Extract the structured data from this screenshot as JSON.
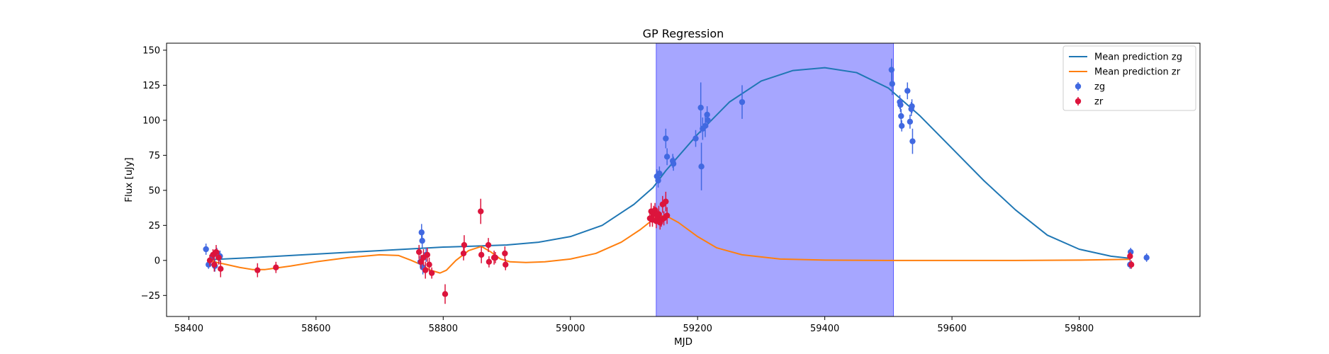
{
  "chart_data": {
    "type": "scatter",
    "title": "GP Regression",
    "xlabel": "MJD",
    "ylabel": "Flux [uJy]",
    "xlim": [
      58365,
      59990
    ],
    "ylim": [
      -40,
      155
    ],
    "xticks": [
      58400,
      58600,
      58800,
      59000,
      59200,
      59400,
      59600,
      59800
    ],
    "yticks": [
      -25,
      0,
      25,
      50,
      75,
      100,
      125,
      150
    ],
    "grid": false,
    "legend_position": "top-right",
    "shaded_span": {
      "x0": 59135,
      "x1": 59508,
      "color": "#a6a6ff"
    },
    "colors": {
      "zg_line": "#1f77b4",
      "zr_line": "#ff7f0e",
      "zg_points": "#4169e1",
      "zr_points": "#dc143c"
    },
    "legend": [
      {
        "label": "Mean prediction zg",
        "kind": "line",
        "color": "#1f77b4"
      },
      {
        "label": "Mean prediction zr",
        "kind": "line",
        "color": "#ff7f0e"
      },
      {
        "label": "zg",
        "kind": "errorbar",
        "color": "#4169e1"
      },
      {
        "label": "zr",
        "kind": "errorbar",
        "color": "#dc143c"
      }
    ],
    "lines": [
      {
        "name": "Mean prediction zg",
        "color": "#1f77b4",
        "points": [
          [
            58430,
            0.5
          ],
          [
            58500,
            2
          ],
          [
            58600,
            4.5
          ],
          [
            58700,
            7
          ],
          [
            58760,
            8.5
          ],
          [
            58800,
            9.5
          ],
          [
            58850,
            10.2
          ],
          [
            58900,
            11
          ],
          [
            58950,
            13
          ],
          [
            59000,
            17
          ],
          [
            59050,
            25
          ],
          [
            59100,
            40
          ],
          [
            59130,
            52
          ],
          [
            59150,
            64
          ],
          [
            59200,
            90
          ],
          [
            59250,
            113
          ],
          [
            59300,
            128
          ],
          [
            59350,
            135.5
          ],
          [
            59400,
            137.5
          ],
          [
            59450,
            134
          ],
          [
            59500,
            123
          ],
          [
            59550,
            103
          ],
          [
            59600,
            80
          ],
          [
            59650,
            57
          ],
          [
            59700,
            36
          ],
          [
            59750,
            18
          ],
          [
            59800,
            8
          ],
          [
            59850,
            3
          ],
          [
            59880,
            1.5
          ]
        ]
      },
      {
        "name": "Mean prediction zr",
        "color": "#ff7f0e",
        "points": [
          [
            58430,
            0.5
          ],
          [
            58445,
            -1.5
          ],
          [
            58460,
            -3
          ],
          [
            58480,
            -5
          ],
          [
            58500,
            -6.5
          ],
          [
            58520,
            -6.5
          ],
          [
            58560,
            -4
          ],
          [
            58600,
            -1
          ],
          [
            58650,
            2
          ],
          [
            58700,
            4
          ],
          [
            58730,
            3.5
          ],
          [
            58750,
            0
          ],
          [
            58765,
            -3
          ],
          [
            58780,
            -7
          ],
          [
            58795,
            -9
          ],
          [
            58805,
            -7
          ],
          [
            58820,
            0
          ],
          [
            58840,
            7
          ],
          [
            58860,
            10
          ],
          [
            58875,
            6
          ],
          [
            58890,
            1
          ],
          [
            58905,
            -1
          ],
          [
            58930,
            -1.5
          ],
          [
            58960,
            -1
          ],
          [
            59000,
            1
          ],
          [
            59040,
            5
          ],
          [
            59080,
            13
          ],
          [
            59110,
            22
          ],
          [
            59135,
            31
          ],
          [
            59150,
            32
          ],
          [
            59170,
            27
          ],
          [
            59200,
            17
          ],
          [
            59230,
            9
          ],
          [
            59270,
            4
          ],
          [
            59330,
            1
          ],
          [
            59400,
            0.2
          ],
          [
            59500,
            0
          ],
          [
            59600,
            0
          ],
          [
            59700,
            0
          ],
          [
            59800,
            0.2
          ],
          [
            59880,
            0.8
          ]
        ]
      }
    ],
    "series": [
      {
        "name": "zg",
        "color": "#4169e1",
        "points": [
          [
            58427,
            8,
            4
          ],
          [
            58431,
            -3,
            3
          ],
          [
            58437,
            3,
            3
          ],
          [
            58441,
            -4,
            4
          ],
          [
            58444,
            5,
            4
          ],
          [
            58449,
            3,
            4
          ],
          [
            58764,
            -1,
            4
          ],
          [
            58766,
            20,
            6
          ],
          [
            58767,
            14,
            5
          ],
          [
            58768,
            -5,
            5
          ],
          [
            58773,
            4,
            5
          ],
          [
            59136,
            60,
            5
          ],
          [
            59138,
            57,
            5
          ],
          [
            59140,
            62,
            5
          ],
          [
            59150,
            87,
            7
          ],
          [
            59152,
            74,
            6
          ],
          [
            59161,
            71,
            5
          ],
          [
            59162,
            69,
            5
          ],
          [
            59197,
            87,
            6
          ],
          [
            59205,
            109,
            18
          ],
          [
            59206,
            67,
            17
          ],
          [
            59208,
            94,
            8
          ],
          [
            59212,
            96,
            8
          ],
          [
            59215,
            104,
            6
          ],
          [
            59216,
            100,
            5
          ],
          [
            59270,
            113,
            12
          ],
          [
            59505,
            136,
            8
          ],
          [
            59506,
            126,
            8
          ],
          [
            59518,
            113,
            5
          ],
          [
            59519,
            111,
            5
          ],
          [
            59520,
            103,
            5
          ],
          [
            59521,
            96,
            4
          ],
          [
            59530,
            121,
            6
          ],
          [
            59534,
            99,
            5
          ],
          [
            59536,
            108,
            5
          ],
          [
            59537,
            110,
            5
          ],
          [
            59538,
            85,
            9
          ],
          [
            59880,
            -3,
            3
          ],
          [
            59881,
            6,
            3
          ],
          [
            59906,
            2,
            3
          ]
        ]
      },
      {
        "name": "zr",
        "color": "#dc143c",
        "points": [
          [
            58433,
            0,
            4
          ],
          [
            58438,
            4,
            4
          ],
          [
            58440,
            -3,
            5
          ],
          [
            58443,
            6,
            5
          ],
          [
            58447,
            2,
            5
          ],
          [
            58450,
            -6,
            6
          ],
          [
            58508,
            -7,
            5
          ],
          [
            58537,
            -5,
            4
          ],
          [
            58762,
            6,
            5
          ],
          [
            58765,
            -1,
            5
          ],
          [
            58769,
            2,
            6
          ],
          [
            58772,
            -7,
            6
          ],
          [
            58775,
            4,
            5
          ],
          [
            58778,
            -3,
            5
          ],
          [
            58782,
            -9,
            4
          ],
          [
            58803,
            -24,
            7
          ],
          [
            58832,
            5,
            5
          ],
          [
            58833,
            11,
            7
          ],
          [
            58859,
            35,
            9
          ],
          [
            58860,
            4,
            6
          ],
          [
            58871,
            11,
            5
          ],
          [
            58872,
            -1,
            4
          ],
          [
            58880,
            2,
            5
          ],
          [
            58882,
            2,
            4
          ],
          [
            58897,
            5,
            5
          ],
          [
            58898,
            -3,
            4
          ],
          [
            59125,
            30,
            6
          ],
          [
            59127,
            35,
            6
          ],
          [
            59129,
            29,
            5
          ],
          [
            59131,
            33,
            6
          ],
          [
            59133,
            36,
            5
          ],
          [
            59135,
            28,
            5
          ],
          [
            59137,
            31,
            5
          ],
          [
            59139,
            33,
            6
          ],
          [
            59141,
            27,
            5
          ],
          [
            59143,
            29,
            5
          ],
          [
            59145,
            40,
            6
          ],
          [
            59147,
            30,
            5
          ],
          [
            59150,
            42,
            7
          ],
          [
            59152,
            32,
            6
          ],
          [
            59880,
            3,
            3
          ],
          [
            59882,
            -3,
            3
          ]
        ]
      }
    ]
  }
}
